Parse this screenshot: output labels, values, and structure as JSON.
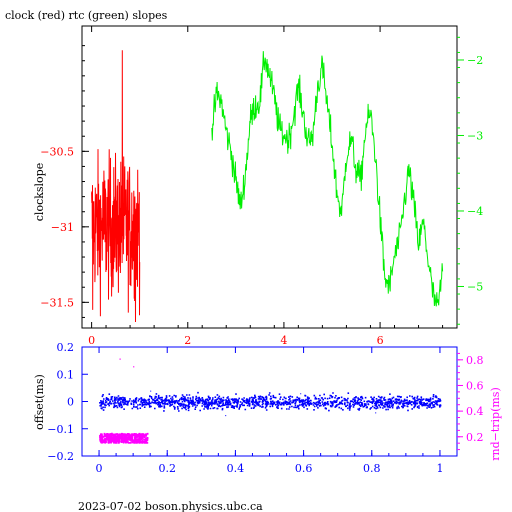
{
  "title": "clock (red) rtc (green) slopes",
  "footer": "2023-07-02  boson.physics.ubc.ca",
  "colors": {
    "clock": "#ff0000",
    "rtc": "#00ee00",
    "offset": "#0000ff",
    "rndtrip": "#ff00ff",
    "frame": "#000000"
  },
  "chart_data": [
    {
      "type": "line",
      "ylabel": "clockslope",
      "xlim": [
        -0.2,
        7.6
      ],
      "ylim": [
        -31.67,
        -29.67
      ],
      "y2lim": [
        -5.55,
        -1.55
      ],
      "xticks": [
        0,
        2,
        4,
        6
      ],
      "xtick_labels": [
        "0",
        "2",
        "4",
        "6"
      ],
      "yticks": [
        -31.5,
        -31,
        -30.5
      ],
      "ytick_labels": [
        "−31.5",
        "−31",
        "−30.5"
      ],
      "y2ticks": [
        -5,
        -4,
        -3,
        -2
      ],
      "y2tick_labels": [
        "−5",
        "−4",
        "−3",
        "−2"
      ],
      "series": [
        {
          "name": "clock",
          "axis": "left",
          "color": "#ff0000",
          "x_range": [
            0,
            1.0
          ],
          "mean": -31.0,
          "spread": 0.28,
          "min": -31.63,
          "max": -29.83
        },
        {
          "name": "rtc",
          "axis": "right",
          "color": "#00ee00",
          "x": [
            2.5,
            2.6,
            2.7,
            2.8,
            2.9,
            3.0,
            3.1,
            3.2,
            3.3,
            3.4,
            3.5,
            3.6,
            3.7,
            3.8,
            3.9,
            4.0,
            4.1,
            4.2,
            4.3,
            4.4,
            4.5,
            4.6,
            4.7,
            4.8,
            4.9,
            5.0,
            5.1,
            5.2,
            5.3,
            5.4,
            5.5,
            5.6,
            5.7,
            5.8,
            5.9,
            6.0,
            6.1,
            6.2,
            6.3,
            6.4,
            6.5,
            6.6,
            6.7,
            6.8,
            6.9,
            7.0,
            7.1,
            7.2,
            7.3
          ],
          "y": [
            -2.95,
            -2.45,
            -2.55,
            -2.95,
            -3.2,
            -3.6,
            -3.95,
            -3.5,
            -2.8,
            -2.6,
            -2.55,
            -1.95,
            -2.2,
            -2.5,
            -2.9,
            -3.0,
            -3.05,
            -2.75,
            -2.35,
            -2.7,
            -3.1,
            -3.0,
            -2.35,
            -2.1,
            -2.6,
            -3.1,
            -3.75,
            -4.05,
            -3.25,
            -3.05,
            -3.45,
            -3.6,
            -2.9,
            -2.7,
            -3.25,
            -4.1,
            -4.9,
            -5.0,
            -4.6,
            -4.4,
            -3.9,
            -3.45,
            -3.9,
            -4.45,
            -4.15,
            -4.65,
            -5.1,
            -5.3,
            -4.8
          ]
        }
      ]
    },
    {
      "type": "scatter",
      "ylabel": "offset(ms)",
      "y2label": "rnd−trip(ms)",
      "xlim": [
        -0.05,
        1.05
      ],
      "ylim": [
        -0.2,
        0.2
      ],
      "y2lim": [
        0.05,
        0.9
      ],
      "xticks": [
        0,
        0.2,
        0.4,
        0.6,
        0.8,
        1
      ],
      "xtick_labels": [
        "0",
        "0.2",
        "0.4",
        "0.6",
        "0.8",
        "1"
      ],
      "yticks": [
        -0.2,
        -0.1,
        0,
        0.1,
        0.2
      ],
      "ytick_labels": [
        "−0.2",
        "−0.1",
        "0",
        "0.1",
        "0.2"
      ],
      "y2ticks": [
        0.2,
        0.4,
        0.6,
        0.8
      ],
      "y2tick_labels": [
        "0.2",
        "0.4",
        "0.6",
        "0.8"
      ],
      "series": [
        {
          "name": "offset",
          "axis": "left",
          "color": "#0000ff",
          "x_range": [
            0,
            1
          ],
          "mean": 0.0,
          "spread": 0.012,
          "outliers_y": [
            0.04,
            -0.05,
            0.03,
            -0.04
          ]
        },
        {
          "name": "rnd-trip",
          "axis": "right",
          "color": "#ff00ff",
          "x_range": [
            0,
            0.14
          ],
          "mean": 0.195,
          "spread": 0.03,
          "outliers_y": [
            0.81,
            0.75
          ]
        }
      ]
    }
  ]
}
